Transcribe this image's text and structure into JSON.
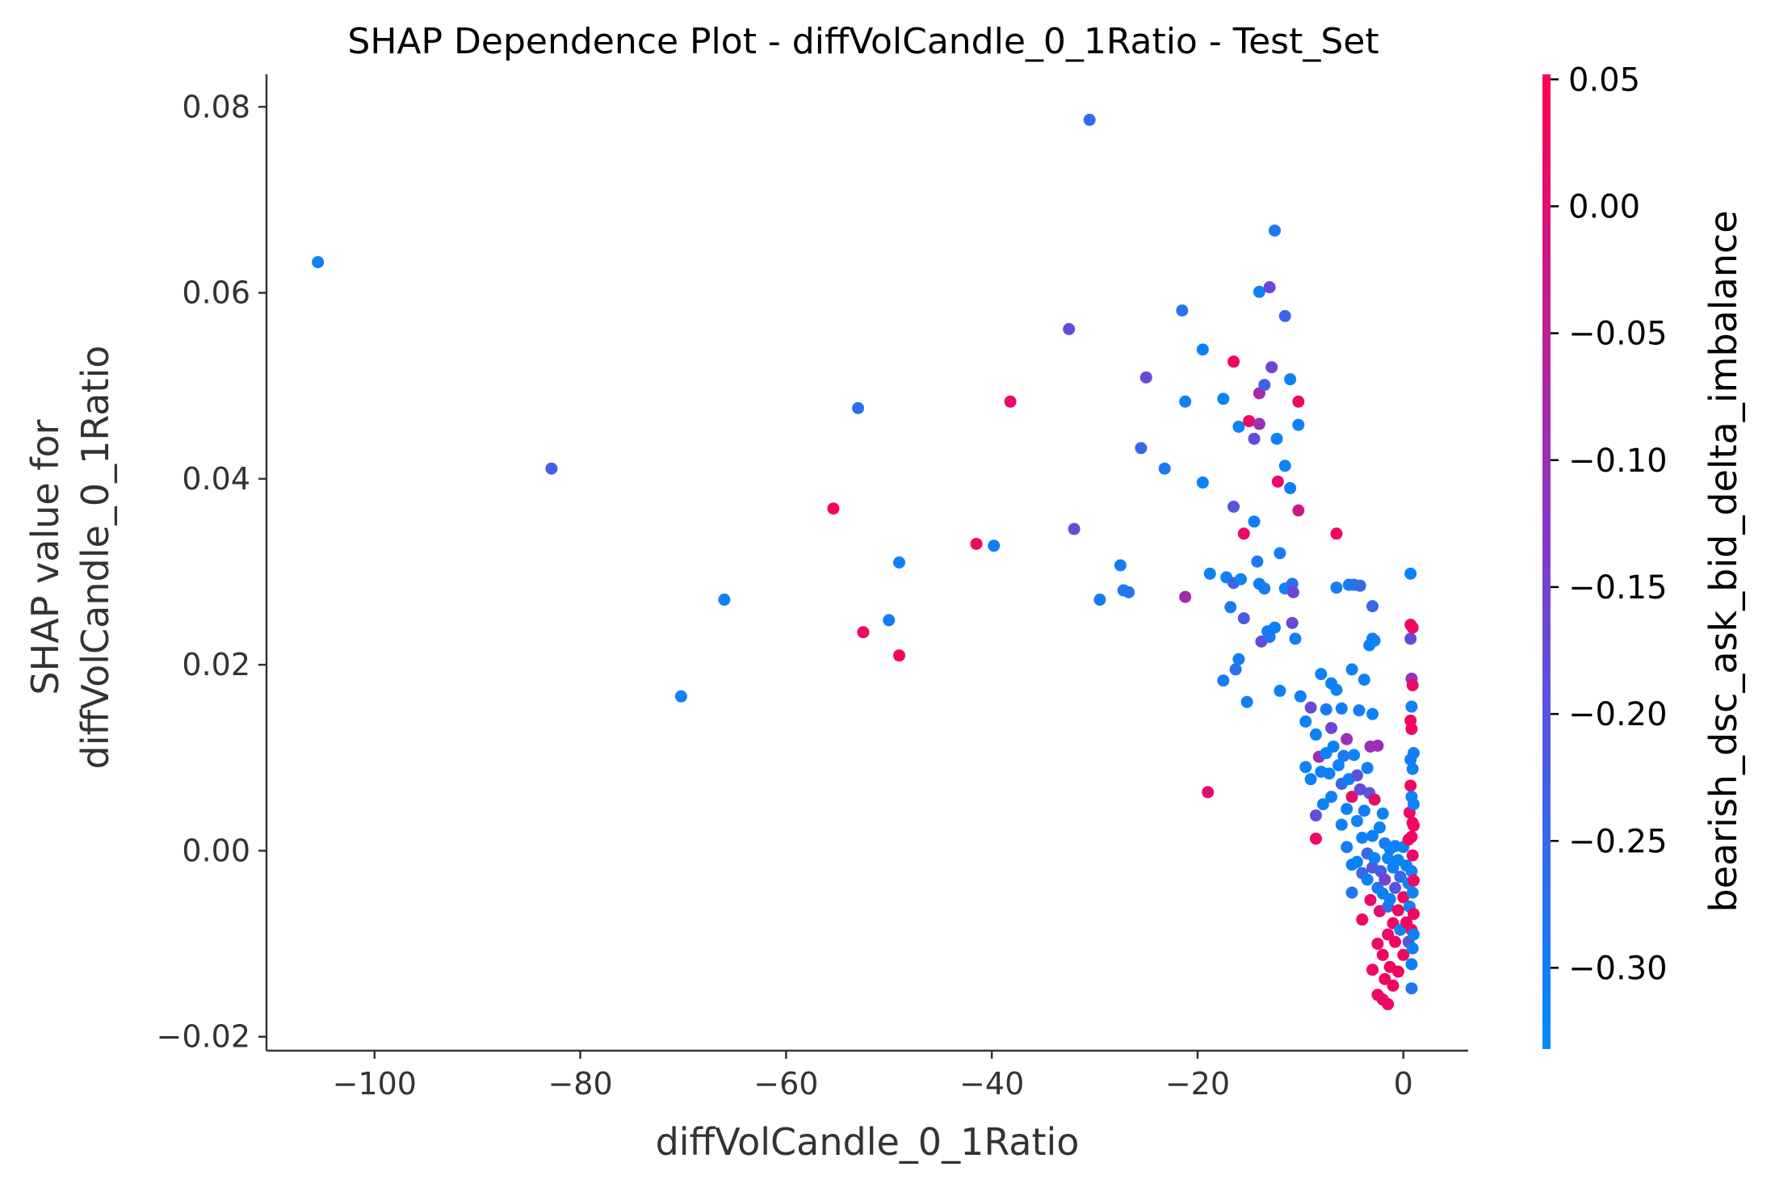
{
  "chart_data": {
    "type": "scatter",
    "title": "SHAP Dependence Plot - diffVolCandle_0_1Ratio - Test_Set",
    "xlabel": "diffVolCandle_0_1Ratio",
    "ylabel": [
      "SHAP value for",
      "diffVolCandle_0_1Ratio"
    ],
    "xlim": [
      -110.5,
      6.3
    ],
    "ylim": [
      -0.0215,
      0.0835
    ],
    "xticks": [
      -100,
      -80,
      -60,
      -40,
      -20,
      0
    ],
    "xtick_labels": [
      "−100",
      "−80",
      "−60",
      "−40",
      "−20",
      "0"
    ],
    "yticks": [
      -0.02,
      0.0,
      0.02,
      0.04,
      0.06,
      0.08
    ],
    "ytick_labels": [
      "−0.02",
      "0.00",
      "0.02",
      "0.04",
      "0.06",
      "0.08"
    ],
    "colorbar": {
      "label": "bearish_dsc_ask_bid_delta_imbalance",
      "range": [
        -0.332,
        0.052
      ],
      "ticks": [
        0.05,
        0.0,
        -0.05,
        -0.1,
        -0.15,
        -0.2,
        -0.25,
        -0.3
      ],
      "tick_labels": [
        "0.05",
        "0.00",
        "−0.05",
        "−0.10",
        "−0.15",
        "−0.20",
        "−0.25",
        "−0.30"
      ],
      "colormap_low": "#008afb",
      "colormap_mid": "#7e3ccf",
      "colormap_high": "#ff0052"
    },
    "grid": false,
    "points": [
      [
        -105.5,
        0.0633,
        -0.31
      ],
      [
        -82.8,
        0.0411,
        -0.23
      ],
      [
        -70.2,
        0.0166,
        -0.31
      ],
      [
        -66.0,
        0.027,
        -0.31
      ],
      [
        -55.4,
        0.0368,
        0.04
      ],
      [
        -53.0,
        0.0476,
        -0.27
      ],
      [
        -52.5,
        0.0235,
        0.03
      ],
      [
        -50.0,
        0.0248,
        -0.3
      ],
      [
        -49.0,
        0.031,
        -0.31
      ],
      [
        -49.0,
        0.021,
        0.04
      ],
      [
        -41.5,
        0.033,
        0.03
      ],
      [
        -39.8,
        0.0328,
        -0.31
      ],
      [
        -38.2,
        0.0483,
        0.02
      ],
      [
        -32.5,
        0.0561,
        -0.18
      ],
      [
        -32.0,
        0.0346,
        -0.18
      ],
      [
        -30.5,
        0.0786,
        -0.26
      ],
      [
        -29.5,
        0.027,
        -0.3
      ],
      [
        -27.5,
        0.0307,
        -0.3
      ],
      [
        -27.2,
        0.028,
        -0.29
      ],
      [
        -26.7,
        0.0278,
        -0.28
      ],
      [
        -25.5,
        0.0433,
        -0.25
      ],
      [
        -25.0,
        0.0509,
        -0.17
      ],
      [
        -23.2,
        0.0411,
        -0.29
      ],
      [
        -21.5,
        0.0581,
        -0.27
      ],
      [
        -21.2,
        0.0483,
        -0.31
      ],
      [
        -21.2,
        0.0273,
        -0.08
      ],
      [
        -19.5,
        0.0539,
        -0.31
      ],
      [
        -19.5,
        0.0396,
        -0.31
      ],
      [
        -19.0,
        0.0063,
        0.01
      ],
      [
        -18.8,
        0.0298,
        -0.31
      ],
      [
        -17.5,
        0.0486,
        -0.31
      ],
      [
        -17.5,
        0.0183,
        -0.3
      ],
      [
        -17.2,
        0.0294,
        -0.31
      ],
      [
        -16.5,
        0.0526,
        0.03
      ],
      [
        -16.5,
        0.0288,
        -0.23
      ],
      [
        -16.8,
        0.0262,
        -0.3
      ],
      [
        -16.5,
        0.037,
        -0.2
      ],
      [
        -16.3,
        0.0195,
        -0.27
      ],
      [
        -16.0,
        0.0456,
        -0.31
      ],
      [
        -16.0,
        0.0206,
        -0.3
      ],
      [
        -15.8,
        0.0292,
        -0.31
      ],
      [
        -15.5,
        0.0341,
        0.02
      ],
      [
        -15.5,
        0.025,
        -0.22
      ],
      [
        -15.2,
        0.016,
        -0.31
      ],
      [
        -15.0,
        0.0462,
        0.02
      ],
      [
        -14.5,
        0.0354,
        -0.31
      ],
      [
        -14.5,
        0.0443,
        -0.18
      ],
      [
        -14.2,
        0.0311,
        -0.29
      ],
      [
        -14.0,
        0.0601,
        -0.31
      ],
      [
        -14.0,
        0.0459,
        -0.1
      ],
      [
        -14.0,
        0.0492,
        -0.08
      ],
      [
        -14.0,
        0.0287,
        -0.31
      ],
      [
        -13.8,
        0.0225,
        -0.19
      ],
      [
        -13.5,
        0.0501,
        -0.24
      ],
      [
        -13.5,
        0.0282,
        -0.3
      ],
      [
        -13.2,
        0.0236,
        -0.31
      ],
      [
        -13.0,
        0.0606,
        -0.17
      ],
      [
        -13.0,
        0.023,
        -0.28
      ],
      [
        -12.8,
        0.052,
        -0.16
      ],
      [
        -12.5,
        0.0667,
        -0.29
      ],
      [
        -12.5,
        0.024,
        -0.31
      ],
      [
        -12.3,
        0.0443,
        -0.31
      ],
      [
        -12.2,
        0.0397,
        0.02
      ],
      [
        -12.0,
        0.032,
        -0.3
      ],
      [
        -12.0,
        0.0172,
        -0.31
      ],
      [
        -11.5,
        0.0575,
        -0.24
      ],
      [
        -11.5,
        0.0414,
        -0.31
      ],
      [
        -11.5,
        0.0282,
        -0.31
      ],
      [
        -11.0,
        0.039,
        -0.31
      ],
      [
        -11.0,
        0.0507,
        -0.31
      ],
      [
        -10.8,
        0.0287,
        -0.26
      ],
      [
        -10.8,
        0.0245,
        -0.17
      ],
      [
        -10.7,
        0.0278,
        -0.16
      ],
      [
        -10.5,
        0.0228,
        -0.31
      ],
      [
        -10.2,
        0.0483,
        0.03
      ],
      [
        -10.2,
        0.0366,
        -0.03
      ],
      [
        -10.2,
        0.0458,
        -0.31
      ],
      [
        -10.0,
        0.0166,
        -0.31
      ],
      [
        -9.5,
        0.0139,
        -0.31
      ],
      [
        -9.5,
        0.009,
        -0.31
      ],
      [
        -9.0,
        0.0154,
        -0.18
      ],
      [
        -9.0,
        0.0077,
        -0.31
      ],
      [
        -8.5,
        0.0125,
        -0.31
      ],
      [
        -8.5,
        0.0038,
        -0.19
      ],
      [
        -8.5,
        0.0013,
        0.03
      ],
      [
        -8.2,
        0.0101,
        -0.1
      ],
      [
        -8.0,
        0.019,
        -0.31
      ],
      [
        -8.0,
        0.0085,
        -0.31
      ],
      [
        -7.8,
        0.005,
        -0.31
      ],
      [
        -7.5,
        0.0152,
        -0.29
      ],
      [
        -7.5,
        0.0105,
        -0.31
      ],
      [
        -7.2,
        0.0083,
        -0.31
      ],
      [
        -7.0,
        0.018,
        -0.31
      ],
      [
        -7.0,
        0.0132,
        -0.16
      ],
      [
        -7.0,
        0.0058,
        -0.31
      ],
      [
        -6.8,
        0.0112,
        -0.31
      ],
      [
        -6.5,
        0.0283,
        -0.3
      ],
      [
        -6.5,
        0.0341,
        0.03
      ],
      [
        -6.5,
        0.0173,
        -0.31
      ],
      [
        -6.3,
        0.0092,
        -0.31
      ],
      [
        -6.0,
        0.0153,
        -0.31
      ],
      [
        -6.0,
        0.0072,
        -0.25
      ],
      [
        -6.0,
        0.0028,
        -0.31
      ],
      [
        -5.8,
        0.0102,
        -0.29
      ],
      [
        -5.5,
        0.012,
        -0.1
      ],
      [
        -5.5,
        0.0045,
        -0.31
      ],
      [
        -5.5,
        0.0004,
        -0.3
      ],
      [
        -5.3,
        0.0286,
        -0.3
      ],
      [
        -5.3,
        0.0077,
        -0.31
      ],
      [
        -5.0,
        0.0195,
        -0.31
      ],
      [
        -5.0,
        0.0058,
        0.01
      ],
      [
        -5.0,
        -0.0015,
        -0.31
      ],
      [
        -5.0,
        -0.0045,
        -0.28
      ],
      [
        -4.8,
        0.0286,
        -0.28
      ],
      [
        -4.8,
        0.0103,
        -0.31
      ],
      [
        -4.5,
        0.0081,
        -0.2
      ],
      [
        -4.5,
        0.0032,
        -0.31
      ],
      [
        -4.5,
        -0.0012,
        -0.31
      ],
      [
        -4.3,
        0.0151,
        -0.3
      ],
      [
        -4.2,
        0.0285,
        -0.25
      ],
      [
        -4.2,
        0.0066,
        -0.17
      ],
      [
        -4.0,
        0.0014,
        -0.31
      ],
      [
        -4.0,
        -0.0024,
        -0.25
      ],
      [
        -4.0,
        -0.0074,
        0.03
      ],
      [
        -3.8,
        0.0184,
        -0.31
      ],
      [
        -3.8,
        0.0043,
        -0.3
      ],
      [
        -3.5,
        0.0089,
        -0.31
      ],
      [
        -3.5,
        -0.0003,
        -0.25
      ],
      [
        -3.5,
        -0.0031,
        -0.31
      ],
      [
        -3.3,
        0.0221,
        -0.31
      ],
      [
        -3.3,
        0.0062,
        -0.2
      ],
      [
        -3.2,
        0.0112,
        -0.1
      ],
      [
        -3.2,
        -0.0053,
        0.02
      ],
      [
        -3.0,
        0.0228,
        -0.31
      ],
      [
        -3.0,
        0.0263,
        -0.25
      ],
      [
        -3.0,
        0.0147,
        -0.31
      ],
      [
        -3.0,
        0.0016,
        -0.31
      ],
      [
        -3.0,
        -0.0018,
        -0.2
      ],
      [
        -3.0,
        -0.0128,
        0.03
      ],
      [
        -2.8,
        0.0226,
        -0.31
      ],
      [
        -2.8,
        0.0055,
        0.01
      ],
      [
        -2.8,
        -0.0008,
        -0.31
      ],
      [
        -2.5,
        0.0113,
        -0.1
      ],
      [
        -2.5,
        -0.004,
        -0.28
      ],
      [
        -2.5,
        -0.01,
        0.02
      ],
      [
        -2.5,
        -0.0155,
        0.03
      ],
      [
        -2.3,
        0.0025,
        -0.31
      ],
      [
        -2.3,
        -0.0065,
        0.01
      ],
      [
        -2.2,
        -0.0022,
        -0.22
      ],
      [
        -2.0,
        0.004,
        -0.31
      ],
      [
        -2.0,
        -0.0046,
        -0.31
      ],
      [
        -2.0,
        -0.0112,
        0.03
      ],
      [
        -2.0,
        -0.016,
        0.02
      ],
      [
        -1.8,
        0.0008,
        -0.29
      ],
      [
        -1.8,
        -0.0031,
        -0.15
      ],
      [
        -1.8,
        -0.0138,
        0.03
      ],
      [
        -1.5,
        -0.0008,
        -0.31
      ],
      [
        -1.5,
        -0.006,
        -0.25
      ],
      [
        -1.5,
        -0.009,
        0.02
      ],
      [
        -1.5,
        -0.0165,
        0.03
      ],
      [
        -1.3,
        0.0002,
        -0.31
      ],
      [
        -1.3,
        -0.0052,
        -0.31
      ],
      [
        -1.3,
        -0.0125,
        0.03
      ],
      [
        -1.0,
        -0.0018,
        -0.31
      ],
      [
        -1.0,
        -0.0078,
        0.03
      ],
      [
        -1.0,
        -0.0145,
        0.03
      ],
      [
        -0.8,
        0.0005,
        -0.31
      ],
      [
        -0.8,
        -0.004,
        -0.2
      ],
      [
        -0.8,
        -0.0098,
        0.03
      ],
      [
        -0.5,
        -0.001,
        -0.31
      ],
      [
        -0.5,
        -0.0064,
        0.03
      ],
      [
        -0.5,
        -0.013,
        0.03
      ],
      [
        -0.3,
        -0.0028,
        -0.25
      ],
      [
        -0.3,
        -0.0085,
        -0.31
      ],
      [
        0.0,
        0.0004,
        -0.31
      ],
      [
        0.0,
        -0.005,
        0.03
      ],
      [
        0.0,
        -0.0112,
        0.03
      ],
      [
        0.3,
        -0.0016,
        -0.31
      ],
      [
        0.3,
        -0.0077,
        0.03
      ],
      [
        0.5,
        0.0012,
        0.03
      ],
      [
        0.5,
        -0.0035,
        -0.31
      ],
      [
        0.5,
        -0.0098,
        -0.2
      ],
      [
        0.6,
        0.0041,
        0.03
      ],
      [
        0.6,
        -0.006,
        -0.31
      ],
      [
        0.7,
        0.014,
        0.03
      ],
      [
        0.7,
        0.0098,
        -0.31
      ],
      [
        0.7,
        0.007,
        0.03
      ],
      [
        0.7,
        0.0243,
        0.03
      ],
      [
        0.7,
        0.0298,
        -0.31
      ],
      [
        0.7,
        0.0228,
        -0.18
      ],
      [
        0.8,
        0.0185,
        -0.1
      ],
      [
        0.8,
        0.0155,
        -0.31
      ],
      [
        0.8,
        0.0131,
        0.03
      ],
      [
        0.8,
        0.0058,
        -0.31
      ],
      [
        0.8,
        0.0015,
        0.03
      ],
      [
        0.8,
        -0.0022,
        -0.31
      ],
      [
        0.8,
        -0.0085,
        0.02
      ],
      [
        0.8,
        -0.0122,
        -0.31
      ],
      [
        0.8,
        -0.0148,
        -0.28
      ],
      [
        0.9,
        0.024,
        0.03
      ],
      [
        0.9,
        0.0178,
        0.02
      ],
      [
        0.9,
        0.0088,
        -0.31
      ],
      [
        0.9,
        0.003,
        0.03
      ],
      [
        0.9,
        -0.0005,
        0.03
      ],
      [
        0.9,
        -0.0045,
        -0.31
      ],
      [
        0.9,
        -0.0105,
        -0.31
      ],
      [
        1.0,
        0.0027,
        0.03
      ],
      [
        1.0,
        -0.0032,
        0.03
      ],
      [
        1.0,
        -0.0068,
        0.03
      ],
      [
        1.0,
        -0.009,
        -0.31
      ],
      [
        1.0,
        0.0105,
        -0.31
      ],
      [
        1.0,
        0.005,
        -0.31
      ]
    ]
  }
}
